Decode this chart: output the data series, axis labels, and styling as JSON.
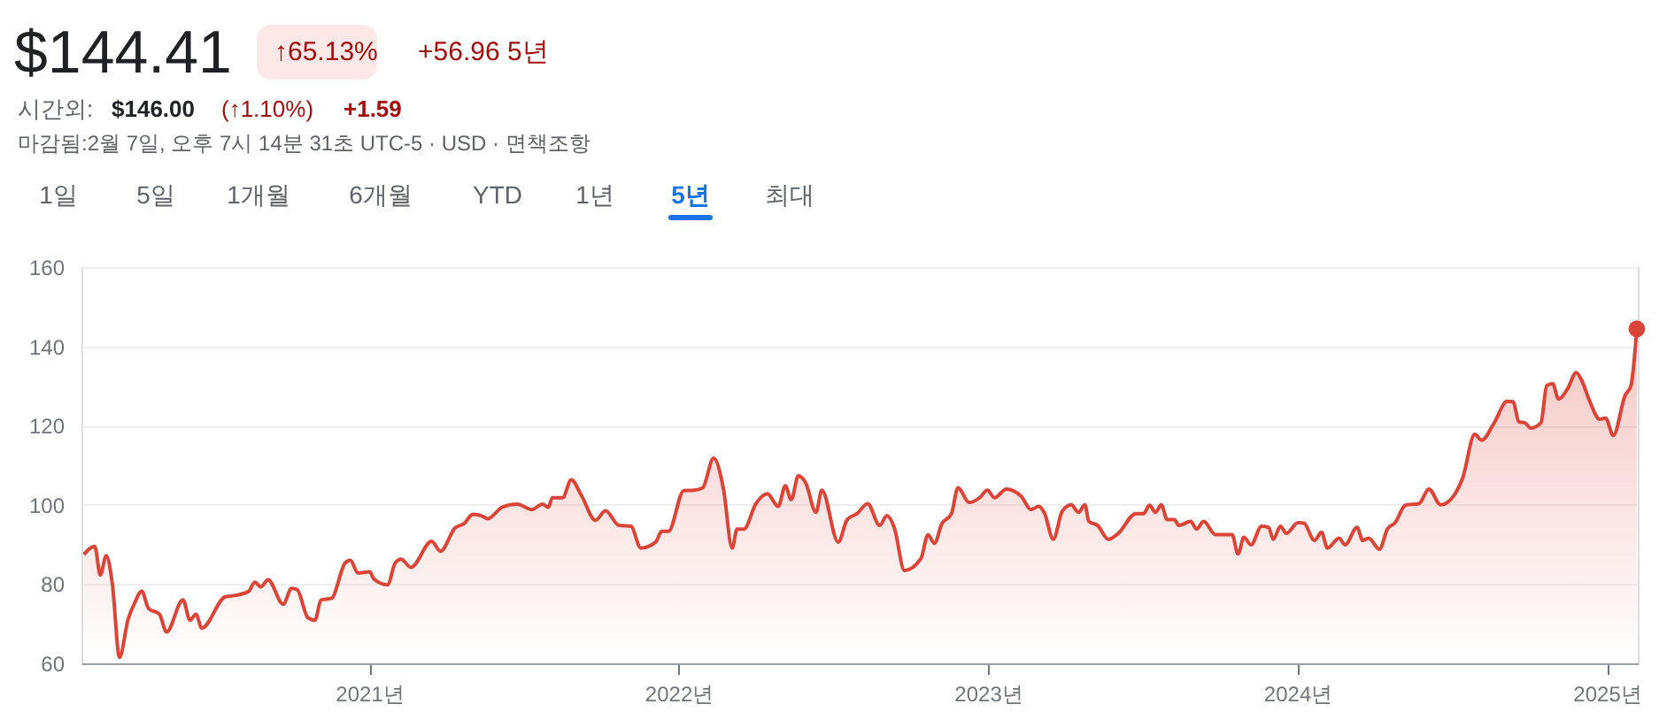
{
  "chart_data": {
    "type": "area",
    "title": "$144.41",
    "annotations": [
      "↑65.13%",
      "+56.96 5년",
      "시간외:",
      "$146.00",
      "(↑1.10%)",
      "+1.59",
      "마감됨:2월 7일, 오후 7시 14분 31초 UTC-5 · USD · 면책조항",
      "1일",
      "5일",
      "1개월",
      "6개월",
      "YTD",
      "1년",
      "5년",
      "최대"
    ],
    "x": [
      2020.078,
      2020.113,
      2020.131,
      2020.15,
      2020.17,
      2020.193,
      2020.221,
      2020.24,
      2020.265,
      2020.287,
      2020.322,
      2020.345,
      2020.398,
      2020.421,
      2020.44,
      2020.459,
      2020.535,
      2020.564,
      2020.611,
      2020.63,
      2020.65,
      2020.673,
      2020.722,
      2020.749,
      2020.767,
      2020.802,
      2020.825,
      2020.844,
      2020.878,
      2020.922,
      2020.939,
      2020.964,
      2021.002,
      2021.015,
      2021.059,
      2021.084,
      2021.103,
      2021.135,
      2021.202,
      2021.23,
      2021.278,
      2021.307,
      2021.335,
      2021.364,
      2021.383,
      2021.43,
      2021.478,
      2021.526,
      2021.56,
      2021.579,
      2021.592,
      2021.625,
      2021.653,
      2021.687,
      2021.731,
      2021.764,
      2021.807,
      2021.846,
      2021.878,
      2021.926,
      2021.945,
      2021.967,
      2022.017,
      2022.05,
      2022.078,
      2022.113,
      2022.145,
      2022.173,
      2022.189,
      2022.211,
      2022.25,
      2022.287,
      2022.322,
      2022.345,
      2022.364,
      2022.387,
      2022.411,
      2022.444,
      2022.463,
      2022.516,
      2022.545,
      2022.577,
      2022.611,
      2022.65,
      2022.673,
      2022.697,
      2022.73,
      2022.783,
      2022.806,
      2022.827,
      2022.85,
      2022.882,
      2022.903,
      2022.939,
      2022.973,
      2022.998,
      2023.021,
      2023.059,
      2023.107,
      2023.139,
      2023.164,
      2023.183,
      2023.211,
      2023.24,
      2023.269,
      2023.293,
      2023.313,
      2023.326,
      2023.354,
      2023.389,
      2023.421,
      2023.478,
      2023.503,
      2023.522,
      2023.541,
      2023.56,
      2023.579,
      2023.602,
      2023.617,
      2023.655,
      2023.674,
      2023.697,
      2023.735,
      2023.789,
      2023.808,
      2023.827,
      2023.85,
      2023.884,
      2023.907,
      2023.922,
      2023.945,
      2023.964,
      2024.002,
      2024.021,
      2024.055,
      2024.078,
      2024.097,
      2024.135,
      2024.154,
      2024.193,
      2024.211,
      2024.23,
      2024.265,
      2024.291,
      2024.316,
      2024.349,
      2024.393,
      2024.425,
      2024.463,
      2024.507,
      2024.535,
      2024.573,
      2024.596,
      2024.634,
      2024.678,
      2024.697,
      2024.716,
      2024.735,
      2024.754,
      2024.787,
      2024.806,
      2024.825,
      2024.844,
      2024.874,
      2024.901,
      2024.92,
      2024.945,
      2024.977,
      2024.996,
      2025.021,
      2025.059,
      2025.078,
      2025.097
    ],
    "series": [
      {
        "color": "#db4437",
        "values": [
          87.5,
          89.5,
          82.3,
          87.2,
          80,
          61.5,
          71.2,
          74.9,
          78.2,
          73.8,
          72.4,
          67.9,
          76,
          70.9,
          72.4,
          68.9,
          76.8,
          77.1,
          78.2,
          80.5,
          79.3,
          81.1,
          74.9,
          78.9,
          78.6,
          71.5,
          70.9,
          76,
          76.4,
          85.3,
          86,
          82.8,
          83.1,
          81.3,
          79.8,
          85.3,
          86.3,
          84.2,
          90.8,
          88.3,
          94.2,
          95.3,
          97.6,
          97.2,
          96.5,
          99.4,
          100.2,
          98.8,
          100.2,
          99.4,
          101.8,
          101.8,
          106.3,
          102.2,
          96.1,
          98.5,
          94.8,
          94.6,
          89.1,
          90.6,
          93.3,
          93.3,
          103.6,
          103.7,
          104.3,
          111.8,
          104,
          89.1,
          93.9,
          93.9,
          100.3,
          102.8,
          99.6,
          104.8,
          101.3,
          107.3,
          105.5,
          98.1,
          103.7,
          90.6,
          96.3,
          97.8,
          100.3,
          94.8,
          97.3,
          94.3,
          83.4,
          86.4,
          92.4,
          90.3,
          95.1,
          97.8,
          104.3,
          100.6,
          101.8,
          103.7,
          101.8,
          104,
          102.2,
          98.8,
          99.6,
          97.8,
          91.3,
          98.4,
          100,
          98.1,
          100,
          95.8,
          94.8,
          91.3,
          92.8,
          97.8,
          97.8,
          99.9,
          98.1,
          100,
          96.3,
          96.3,
          94.8,
          95.8,
          93.9,
          95.8,
          92.5,
          92.5,
          87.6,
          91.8,
          89.9,
          94.6,
          94.3,
          91.3,
          94.6,
          92.8,
          95.5,
          95.4,
          91,
          93.1,
          89.1,
          91.6,
          89.9,
          94.3,
          91,
          91.6,
          88.8,
          93.9,
          95.5,
          99.9,
          100.3,
          104,
          100,
          102.5,
          107,
          117.8,
          116.3,
          120.4,
          126.1,
          126,
          120.9,
          120.7,
          119.4,
          120.7,
          130.1,
          130.6,
          126.7,
          129.4,
          133.4,
          131.2,
          126.1,
          121.6,
          121.9,
          117.5,
          127.6,
          130.1,
          144.41
        ]
      }
    ],
    "xlim": [
      2020.07,
      2025.1
    ],
    "xticks": [
      {
        "value": 2021,
        "label": "2021년"
      },
      {
        "value": 2022,
        "label": "2022년"
      },
      {
        "value": 2023,
        "label": "2023년"
      },
      {
        "value": 2024,
        "label": "2024년"
      },
      {
        "value": 2025,
        "label": "2025년"
      }
    ],
    "ylim": [
      60,
      160
    ],
    "yticks": [
      60,
      80,
      100,
      120,
      140,
      160
    ],
    "grid": "y"
  }
}
